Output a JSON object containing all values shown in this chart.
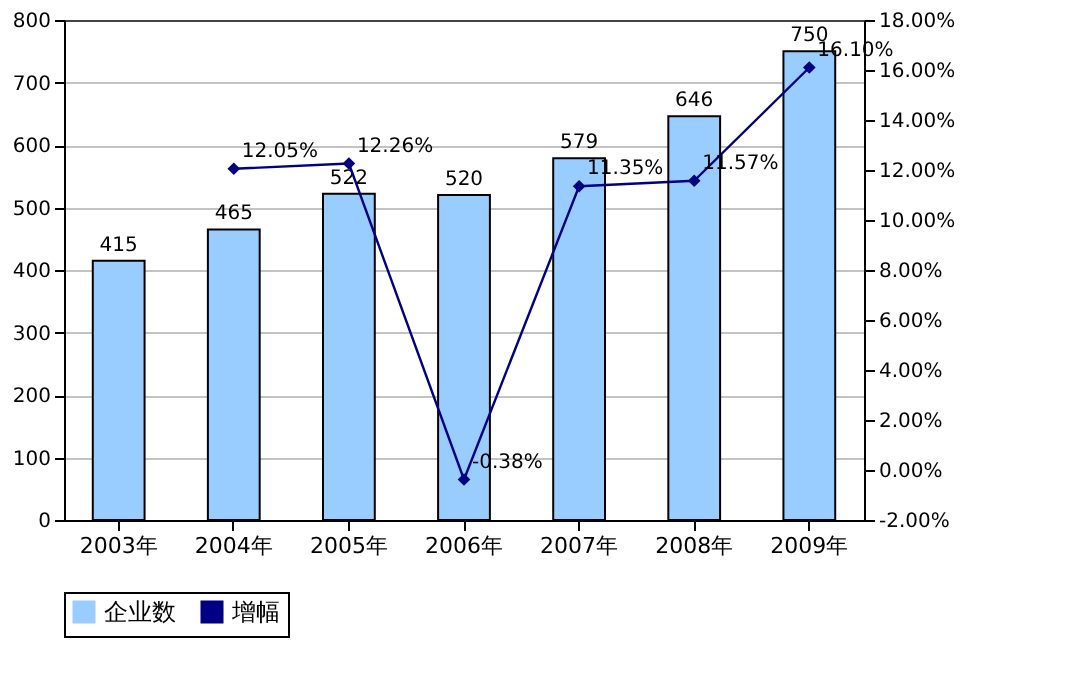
{
  "chart_data": {
    "type": "bar",
    "categories": [
      "2003年",
      "2004年",
      "2005年",
      "2006年",
      "2007年",
      "2008年",
      "2009年"
    ],
    "series": [
      {
        "name": "企业数",
        "type": "bar",
        "color": "#99ccff",
        "values": [
          415,
          465,
          522,
          520,
          579,
          646,
          750
        ],
        "value_labels": [
          "415",
          "465",
          "522",
          "520",
          "579",
          "646",
          "750"
        ]
      },
      {
        "name": "增幅",
        "type": "line",
        "axis": "y2",
        "color": "#000080",
        "marker": "diamond",
        "values": [
          null,
          12.05,
          12.26,
          -0.38,
          11.35,
          11.57,
          16.1
        ],
        "value_labels": [
          null,
          "12.05%",
          "12.26%",
          "-0.38%",
          "11.35%",
          "11.57%",
          "16.10%"
        ]
      }
    ],
    "ylim": [
      0,
      800
    ],
    "yticks": [
      0,
      100,
      200,
      300,
      400,
      500,
      600,
      700,
      800
    ],
    "y2lim": [
      -2,
      18
    ],
    "y2ticks": [
      {
        "value": -2,
        "label": "-2.00%"
      },
      {
        "value": 0,
        "label": "0.00%"
      },
      {
        "value": 2,
        "label": "2.00%"
      },
      {
        "value": 4,
        "label": "4.00%"
      },
      {
        "value": 6,
        "label": "6.00%"
      },
      {
        "value": 8,
        "label": "8.00%"
      },
      {
        "value": 10,
        "label": "10.00%"
      },
      {
        "value": 12,
        "label": "12.00%"
      },
      {
        "value": 14,
        "label": "14.00%"
      },
      {
        "value": 16,
        "label": "16.00%"
      },
      {
        "value": 18,
        "label": "18.00%"
      }
    ],
    "grid": "y",
    "legend": "bottom"
  }
}
